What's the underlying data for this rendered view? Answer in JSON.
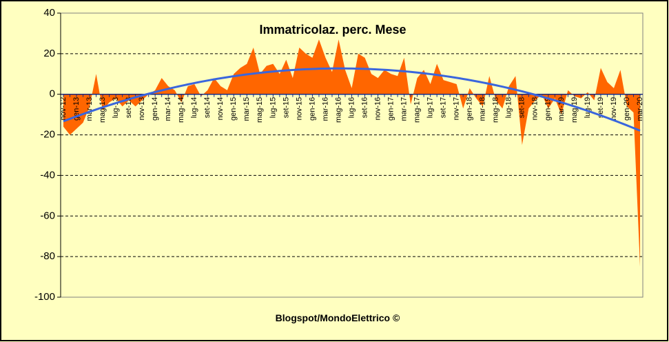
{
  "chart_data": {
    "type": "area",
    "title": "Immatricolaz.  perc. Mese",
    "footer": "Blogspot/MondoElettrico ©",
    "categories": [
      "nov-12",
      null,
      "gen-13",
      null,
      "mar-13",
      null,
      "mag-13",
      null,
      "lug-13",
      null,
      "set-13",
      null,
      "nov-13",
      null,
      "gen-14",
      null,
      "mar-14",
      null,
      "mag-14",
      null,
      "lug-14",
      null,
      "set-14",
      null,
      "nov-14",
      null,
      "gen-15",
      null,
      "mar-15",
      null,
      "mag-15",
      null,
      "lug-15",
      null,
      "set-15",
      null,
      "nov-15",
      null,
      "gen-16",
      null,
      "mar-16",
      null,
      "mag-16",
      null,
      "lug-16",
      null,
      "set-16",
      null,
      "nov-16",
      null,
      "gen-17",
      null,
      "mar-17",
      null,
      "mag-17",
      null,
      "lug-17",
      null,
      "set-17",
      null,
      "nov-17",
      null,
      "gen-18",
      null,
      "mar-18",
      null,
      "mag-18",
      null,
      "lug-18",
      null,
      "set-18",
      null,
      "nov-18",
      null,
      "gen-19",
      null,
      "mar-19",
      null,
      "mag-19",
      null,
      "lug-19",
      null,
      "set-19",
      null,
      "nov-19",
      null,
      "gen-20",
      null,
      "mar-20"
    ],
    "values": [
      -16,
      -20,
      -17,
      -14,
      -6,
      10,
      -8,
      -4,
      -2,
      -6,
      -3,
      -6,
      -3,
      0,
      2,
      8,
      4,
      2,
      -4,
      4,
      5,
      -1,
      2,
      8,
      4,
      2,
      10,
      13,
      15,
      23,
      10,
      14,
      15,
      10,
      17,
      8,
      23,
      20,
      18,
      27,
      18,
      11,
      27,
      12,
      3,
      20,
      18,
      10,
      8,
      12,
      10,
      9,
      18,
      -5,
      8,
      12,
      5,
      15,
      7,
      6,
      5,
      -7,
      3,
      -2,
      -6,
      9,
      -3,
      -7,
      4,
      9,
      -25,
      -7,
      -3,
      0,
      -7,
      -2,
      -10,
      2,
      -1,
      -2,
      1,
      -3,
      13,
      6,
      3,
      12,
      -6,
      -9,
      -85
    ],
    "color": "#ff6600",
    "trendline": {
      "type": "polynomial",
      "order": 2,
      "color": "#3a66dd"
    },
    "ylim": [
      -100,
      40
    ],
    "yticks": [
      -100,
      -80,
      -60,
      -40,
      -20,
      0,
      20,
      40
    ],
    "grid": true
  }
}
